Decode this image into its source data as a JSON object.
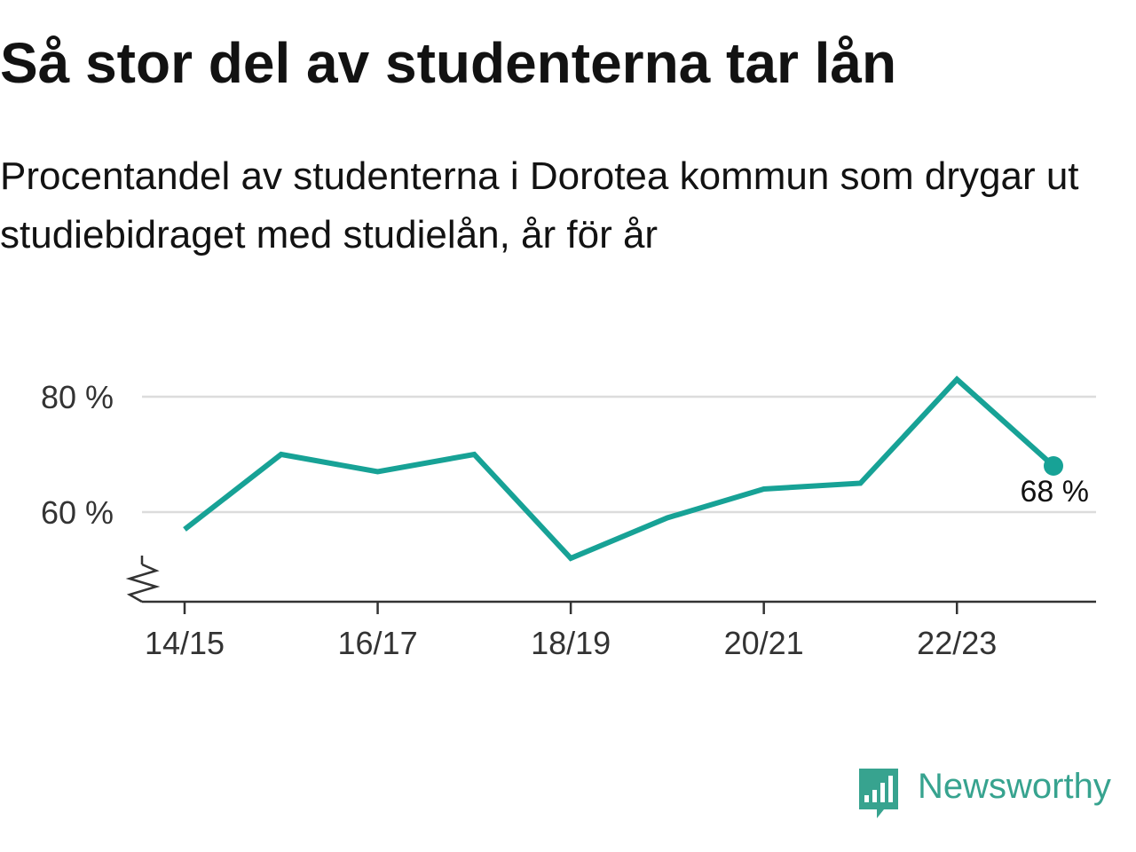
{
  "title": "Så stor del av studenterna tar lån",
  "subtitle": "Procentandel av studenterna i Dorotea kommun som drygar ut studiebidraget med studielån, år för år",
  "brand": {
    "name": "Newsworthy",
    "color": "#37a38f",
    "icon": "newsworthy-bar-chart-badge-icon"
  },
  "colors": {
    "line": "#17a296",
    "grid": "#dcdcdc",
    "axis": "#333333",
    "text": "#333333"
  },
  "chart_data": {
    "type": "line",
    "x": [
      "14/15",
      "15/16",
      "16/17",
      "17/18",
      "18/19",
      "19/20",
      "20/21",
      "21/22",
      "22/23",
      "23/24"
    ],
    "series": [
      {
        "values": [
          57,
          70,
          67,
          70,
          52,
          59,
          64,
          65,
          83,
          68
        ]
      }
    ],
    "ylim": [
      45,
      90
    ],
    "yticks": [
      60,
      80
    ],
    "ytick_labels": [
      "60 %",
      "80 %"
    ],
    "xtick_labels": [
      "14/15",
      "16/17",
      "18/19",
      "20/21",
      "22/23"
    ],
    "axis_break": true,
    "grid": true,
    "last_point_label": "68 %"
  }
}
